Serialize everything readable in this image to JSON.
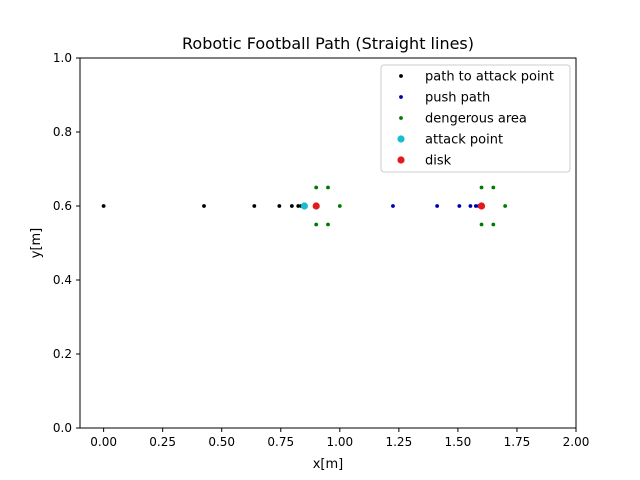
{
  "chart_data": {
    "type": "scatter",
    "title": "Robotic Football Path  (Straight lines)",
    "xlabel": "x[m]",
    "ylabel": "y[m]",
    "xlim": [
      -0.1,
      2.0
    ],
    "ylim": [
      0.0,
      1.0
    ],
    "xticks": [
      "0.00",
      "0.25",
      "0.50",
      "0.75",
      "1.00",
      "1.25",
      "1.50",
      "1.75",
      "2.00"
    ],
    "yticks": [
      "0.0",
      "0.2",
      "0.4",
      "0.6",
      "0.8",
      "1.0"
    ],
    "grid": false,
    "legend_position": "top-right",
    "series": [
      {
        "name": "path to attack point",
        "color": "#000000",
        "marker_size": "small",
        "points": [
          [
            0.0,
            0.6
          ],
          [
            0.425,
            0.6
          ],
          [
            0.638,
            0.6
          ],
          [
            0.744,
            0.6
          ],
          [
            0.797,
            0.6
          ],
          [
            0.824,
            0.6
          ],
          [
            0.837,
            0.6
          ],
          [
            0.844,
            0.6
          ]
        ]
      },
      {
        "name": "push path",
        "color": "#0000aa",
        "marker_size": "small",
        "points": [
          [
            1.225,
            0.6
          ],
          [
            1.412,
            0.6
          ],
          [
            1.506,
            0.6
          ],
          [
            1.553,
            0.6
          ],
          [
            1.576,
            0.6
          ],
          [
            1.588,
            0.6
          ],
          [
            1.594,
            0.6
          ]
        ]
      },
      {
        "name": "dengerous area",
        "color": "#007a00",
        "marker_size": "small",
        "points": [
          [
            0.9,
            0.65
          ],
          [
            0.95,
            0.65
          ],
          [
            1.0,
            0.6
          ],
          [
            0.9,
            0.55
          ],
          [
            0.95,
            0.55
          ],
          [
            1.6,
            0.65
          ],
          [
            1.65,
            0.65
          ],
          [
            1.7,
            0.6
          ],
          [
            1.6,
            0.55
          ],
          [
            1.65,
            0.55
          ]
        ]
      },
      {
        "name": "attack point",
        "color": "#17becf",
        "marker_size": "medium",
        "points": [
          [
            0.85,
            0.6
          ]
        ]
      },
      {
        "name": "disk",
        "color": "#e31a1c",
        "marker_size": "medium",
        "points": [
          [
            0.9,
            0.6
          ],
          [
            1.6,
            0.6
          ]
        ]
      }
    ]
  }
}
